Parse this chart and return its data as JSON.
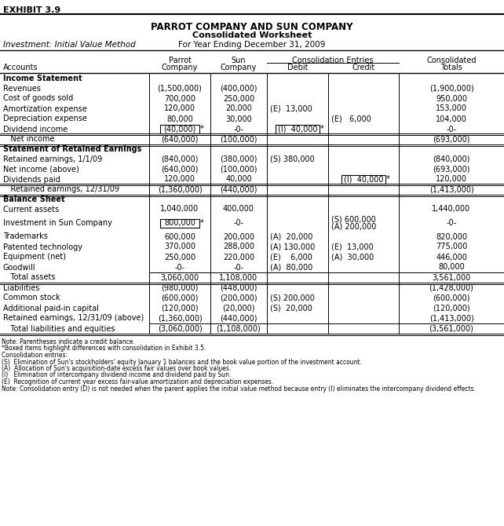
{
  "exhibit": "EXHIBIT 3.9",
  "title1": "PARROT COMPANY AND SUN COMPANY",
  "title2": "Consolidated Worksheet",
  "title3_left": "Investment: Initial Value Method",
  "title3_right": "For Year Ending December 31, 2009",
  "col_header_span": "Consolidation Entries",
  "rows": [
    {
      "label": "Income Statement",
      "bold": true,
      "parrot": "",
      "sun": "",
      "debit": "",
      "credit": "",
      "total": "",
      "section_header": true
    },
    {
      "label": "Revenues",
      "parrot": "(1,500,000)",
      "sun": "(400,000)",
      "debit": "",
      "credit": "",
      "total": "(1,900,000)"
    },
    {
      "label": "Cost of goods sold",
      "parrot": "700,000",
      "sun": "250,000",
      "debit": "",
      "credit": "",
      "total": "950,000"
    },
    {
      "label": "Amortization expense",
      "parrot": "120,000",
      "sun": "20,000",
      "debit": "(E)  13,000",
      "credit": "",
      "total": "153,000"
    },
    {
      "label": "Depreciation expense",
      "parrot": "80,000",
      "sun": "30,000",
      "debit": "",
      "credit": "(E)   6,000",
      "total": "104,000"
    },
    {
      "label": "Dividend income",
      "parrot": "(40,000)",
      "sun": "-0-",
      "debit": "(I)  40,000",
      "credit": "",
      "total": "-0-",
      "box_parrot": true,
      "box_debit": true,
      "star_parrot": true,
      "star_debit": true
    },
    {
      "label": "   Net income",
      "parrot": "(640,000)",
      "sun": "(100,000)",
      "debit": "",
      "credit": "",
      "total": "(693,000)",
      "double_line_above": true,
      "double_line_below": true
    },
    {
      "label": "Statement of Retained Earnings",
      "bold": true,
      "parrot": "",
      "sun": "",
      "debit": "",
      "credit": "",
      "total": "",
      "section_header": true
    },
    {
      "label": "Retained earnings, 1/1/09",
      "parrot": "(840,000)",
      "sun": "(380,000)",
      "debit": "(S) 380,000",
      "credit": "",
      "total": "(840,000)"
    },
    {
      "label": "Net income (above)",
      "parrot": "(640,000)",
      "sun": "(100,000)",
      "debit": "",
      "credit": "",
      "total": "(693,000)"
    },
    {
      "label": "Dividends paid",
      "parrot": "120,000",
      "sun": "40,000",
      "debit": "",
      "credit": "(I)  40,000",
      "total": "120,000",
      "box_credit": true,
      "star_credit": true
    },
    {
      "label": "   Retained earnings, 12/31/09",
      "parrot": "(1,360,000)",
      "sun": "(440,000)",
      "debit": "",
      "credit": "",
      "total": "(1,413,000)",
      "double_line_above": true,
      "double_line_below": true
    },
    {
      "label": "Balance Sheet",
      "bold": true,
      "parrot": "",
      "sun": "",
      "debit": "",
      "credit": "",
      "total": "",
      "section_header": true
    },
    {
      "label": "Current assets",
      "parrot": "1,040,000",
      "sun": "400,000",
      "debit": "",
      "credit": "",
      "total": "1,440,000"
    },
    {
      "label": "Investment in Sun Company",
      "parrot": "800,000",
      "sun": "-0-",
      "debit": "",
      "credit": "(S) 600,000\n(A) 200,000",
      "total": "-0-",
      "box_parrot": true,
      "star_parrot": true,
      "tall_row": true
    },
    {
      "label": "Trademarks",
      "parrot": "600,000",
      "sun": "200,000",
      "debit": "(A)  20,000",
      "credit": "",
      "total": "820,000"
    },
    {
      "label": "Patented technology",
      "parrot": "370,000",
      "sun": "288,000",
      "debit": "(A) 130,000",
      "credit": "(E)  13,000",
      "total": "775,000"
    },
    {
      "label": "Equipment (net)",
      "parrot": "250,000",
      "sun": "220,000",
      "debit": "(E)    6,000",
      "credit": "(A)  30,000",
      "total": "446,000"
    },
    {
      "label": "Goodwill",
      "parrot": "-0-",
      "sun": "-0-",
      "debit": "(A)  80,000",
      "credit": "",
      "total": "80,000"
    },
    {
      "label": "   Total assets",
      "parrot": "3,060,000",
      "sun": "1,108,000",
      "debit": "",
      "credit": "",
      "total": "3,561,000",
      "line_above": true,
      "double_line_below": true
    },
    {
      "label": "Liabilities",
      "parrot": "(980,000)",
      "sun": "(448,000)",
      "debit": "",
      "credit": "",
      "total": "(1,428,000)"
    },
    {
      "label": "Common stock",
      "parrot": "(600,000)",
      "sun": "(200,000)",
      "debit": "(S) 200,000",
      "credit": "",
      "total": "(600,000)"
    },
    {
      "label": "Additional paid-in capital",
      "parrot": "(120,000)",
      "sun": "(20,000)",
      "debit": "(S)  20,000",
      "credit": "",
      "total": "(120,000)"
    },
    {
      "label": "Retained earnings, 12/31/09 (above)",
      "parrot": "(1,360,000)",
      "sun": "(440,000)",
      "debit": "",
      "credit": "",
      "total": "(1,413,000)"
    },
    {
      "label": "   Total liabilities and equities",
      "parrot": "(3,060,000)",
      "sun": "(1,108,000)",
      "debit": "",
      "credit": "",
      "total": "(3,561,000)",
      "line_above": true,
      "double_line_below": true
    }
  ],
  "notes": [
    "Note: Parentheses indicate a credit balance.",
    "*Boxed items highlight differences with consolidation in Exhibit 3.5.",
    "Consolidation entries:",
    "(S)  Elimination of Sun's stockholders' equity January 1 balances and the book value portion of the investment account.",
    "(A)  Allocation of Sun's acquisition-date excess fair values over book values.",
    "(I)   Elimination of intercompany dividend income and dividend paid by Sun.",
    "(E)  Recognition of current year excess fair-value amortization and depreciation expenses.",
    "Note: Consolidation entry (D) is not needed when the parent applies the initial value method because entry (I) eliminates the intercompany dividend effects."
  ]
}
